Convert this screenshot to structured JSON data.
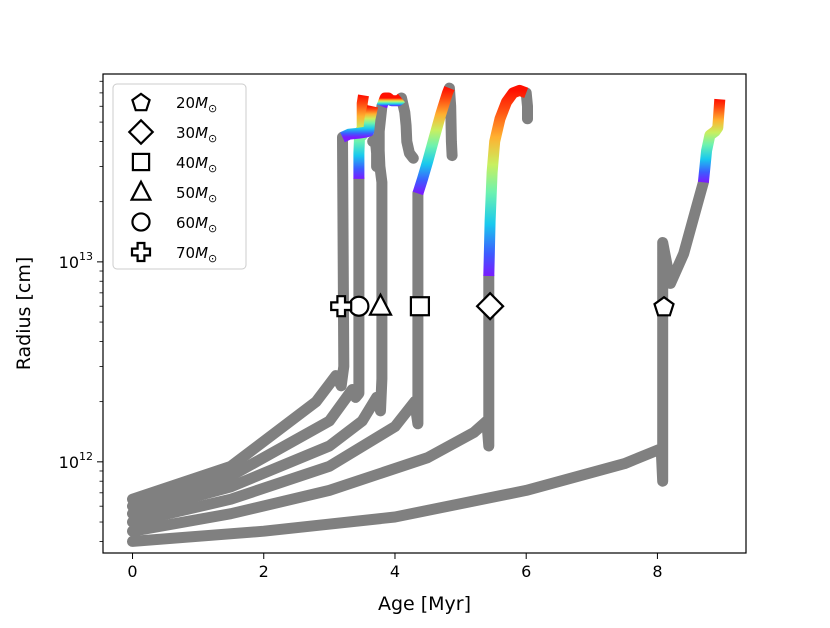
{
  "chart_data": {
    "type": "line",
    "title": "",
    "xlabel": "Age [Myr]",
    "ylabel": "Radius [cm]",
    "xlim": [
      -0.45,
      9.35
    ],
    "ylim": [
      350000000000.0,
      87000000000000.0
    ],
    "yscale": "log",
    "x_ticks": [
      0,
      2,
      4,
      6,
      8
    ],
    "x_tick_labels": [
      "0",
      "2",
      "4",
      "6",
      "8"
    ],
    "y_major_ticks": [
      1000000000000.0,
      10000000000000.0
    ],
    "y_tick_labels": [
      {
        "base": "10",
        "exp": "12"
      },
      {
        "base": "10",
        "exp": "13"
      }
    ],
    "colors": {
      "track": "#808080",
      "axes": "#000000",
      "background": "#ffffff"
    },
    "marker_radius_y": 6000000000000.0,
    "series": [
      {
        "name": "20M☉",
        "marker": "pentagon",
        "marker_age": 8.1,
        "track": [
          [
            0,
            400000000000.0
          ],
          [
            2,
            450000000000.0
          ],
          [
            4,
            530000000000.0
          ],
          [
            6,
            720000000000.0
          ],
          [
            7.5,
            980000000000.0
          ],
          [
            8.02,
            1150000000000.0
          ],
          [
            8.06,
            1100000000000.0
          ],
          [
            8.08,
            800000000000.0
          ],
          [
            8.08,
            12500000000000.0
          ],
          [
            8.2,
            7800000000000.0
          ],
          [
            8.4,
            11000000000000.0
          ],
          [
            8.6,
            19000000000000.0
          ],
          [
            8.7,
            25000000000000.0
          ]
        ],
        "colored": [
          [
            8.7,
            25000000000000.0
          ],
          [
            8.75,
            36000000000000.0
          ],
          [
            8.8,
            43000000000000.0
          ],
          [
            8.88,
            45000000000000.0
          ],
          [
            8.92,
            47000000000000.0
          ],
          [
            8.94,
            58000000000000.0
          ],
          [
            8.95,
            65000000000000.0
          ]
        ]
      },
      {
        "name": "30M☉",
        "marker": "diamond",
        "marker_age": 5.45,
        "track": [
          [
            0,
            450000000000.0
          ],
          [
            1.5,
            550000000000.0
          ],
          [
            3,
            720000000000.0
          ],
          [
            4.5,
            1050000000000.0
          ],
          [
            5.2,
            1400000000000.0
          ],
          [
            5.4,
            1600000000000.0
          ],
          [
            5.43,
            1200000000000.0
          ],
          [
            5.43,
            8500000000000.0
          ]
        ],
        "colored": [
          [
            5.43,
            8500000000000.0
          ],
          [
            5.45,
            16000000000000.0
          ],
          [
            5.48,
            28000000000000.0
          ],
          [
            5.52,
            40000000000000.0
          ],
          [
            5.6,
            52000000000000.0
          ],
          [
            5.7,
            63000000000000.0
          ],
          [
            5.8,
            70000000000000.0
          ],
          [
            5.9,
            72000000000000.0
          ],
          [
            6.0,
            70000000000000.0
          ]
        ],
        "tail": [
          [
            6.0,
            70000000000000.0
          ],
          [
            6.02,
            60000000000000.0
          ],
          [
            6.02,
            52000000000000.0
          ]
        ]
      },
      {
        "name": "40M☉",
        "marker": "square",
        "marker_age": 4.38,
        "track": [
          [
            0,
            500000000000.0
          ],
          [
            1.5,
            650000000000.0
          ],
          [
            3,
            950000000000.0
          ],
          [
            4,
            1500000000000.0
          ],
          [
            4.3,
            2000000000000.0
          ],
          [
            4.35,
            1550000000000.0
          ],
          [
            4.35,
            22000000000000.0
          ]
        ],
        "colored": [
          [
            4.35,
            22000000000000.0
          ],
          [
            4.42,
            26000000000000.0
          ],
          [
            4.5,
            32000000000000.0
          ],
          [
            4.6,
            42000000000000.0
          ],
          [
            4.7,
            55000000000000.0
          ],
          [
            4.8,
            70000000000000.0
          ],
          [
            4.83,
            74000000000000.0
          ]
        ],
        "tail": [
          [
            4.83,
            74000000000000.0
          ],
          [
            4.85,
            60000000000000.0
          ],
          [
            4.86,
            40000000000000.0
          ],
          [
            4.87,
            34000000000000.0
          ]
        ]
      },
      {
        "name": "50M☉",
        "marker": "triangle",
        "marker_age": 3.78,
        "track": [
          [
            0,
            550000000000.0
          ],
          [
            1.5,
            750000000000.0
          ],
          [
            3,
            1200000000000.0
          ],
          [
            3.5,
            1600000000000.0
          ],
          [
            3.72,
            2100000000000.0
          ],
          [
            3.78,
            1800000000000.0
          ],
          [
            3.8,
            2600000000000.0
          ],
          [
            3.8,
            25000000000000.0
          ],
          [
            3.77,
            30000000000000.0
          ],
          [
            3.76,
            36000000000000.0
          ],
          [
            3.76,
            45000000000000.0
          ],
          [
            3.8,
            60000000000000.0
          ]
        ],
        "colored": [
          [
            3.8,
            60000000000000.0
          ],
          [
            3.85,
            66000000000000.0
          ],
          [
            3.9,
            66000000000000.0
          ],
          [
            3.95,
            64000000000000.0
          ],
          [
            4.05,
            64000000000000.0
          ],
          [
            4.1,
            66000000000000.0
          ]
        ],
        "tail": [
          [
            4.1,
            66000000000000.0
          ],
          [
            4.15,
            56000000000000.0
          ],
          [
            4.17,
            48000000000000.0
          ],
          [
            4.18,
            40000000000000.0
          ],
          [
            4.22,
            35000000000000.0
          ],
          [
            4.28,
            33000000000000.0
          ]
        ]
      },
      {
        "name": "60M☉",
        "marker": "circle",
        "marker_age": 3.45,
        "track": [
          [
            0,
            600000000000.0
          ],
          [
            1.5,
            850000000000.0
          ],
          [
            3,
            1600000000000.0
          ],
          [
            3.35,
            2300000000000.0
          ],
          [
            3.4,
            2100000000000.0
          ],
          [
            3.45,
            2200000000000.0
          ],
          [
            3.45,
            26000000000000.0
          ]
        ],
        "colored": [
          [
            3.45,
            26000000000000.0
          ],
          [
            3.45,
            35000000000000.0
          ],
          [
            3.46,
            42000000000000.0
          ],
          [
            3.47,
            45000000000000.0
          ],
          [
            3.5,
            43000000000000.0
          ],
          [
            3.5,
            62000000000000.0
          ],
          [
            3.52,
            68000000000000.0
          ]
        ]
      },
      {
        "name": "70M☉",
        "marker": "plus",
        "marker_age": 3.18,
        "track": [
          [
            0,
            650000000000.0
          ],
          [
            1.5,
            950000000000.0
          ],
          [
            2.8,
            2000000000000.0
          ],
          [
            3.1,
            2700000000000.0
          ],
          [
            3.18,
            2400000000000.0
          ],
          [
            3.22,
            3000000000000.0
          ],
          [
            3.2,
            42000000000000.0
          ]
        ],
        "colored": [
          [
            3.2,
            42000000000000.0
          ],
          [
            3.3,
            43500000000000.0
          ],
          [
            3.45,
            44000000000000.0
          ],
          [
            3.55,
            44500000000000.0
          ],
          [
            3.6,
            45000000000000.0
          ],
          [
            3.62,
            52000000000000.0
          ],
          [
            3.66,
            60000000000000.0
          ]
        ],
        "extra_grey": [
          [
            3.72,
            30000000000000.0
          ],
          [
            3.72,
            35000000000000.0
          ],
          [
            3.7,
            41000000000000.0
          ],
          [
            3.66,
            40000000000000.0
          ]
        ]
      }
    ]
  },
  "legend": {
    "position": "upper-left",
    "entries": [
      {
        "symbol": "pentagon",
        "mass": "20",
        "unit": "M",
        "sun": "⊙"
      },
      {
        "symbol": "diamond",
        "mass": "30",
        "unit": "M",
        "sun": "⊙"
      },
      {
        "symbol": "square",
        "mass": "40",
        "unit": "M",
        "sun": "⊙"
      },
      {
        "symbol": "triangle",
        "mass": "50",
        "unit": "M",
        "sun": "⊙"
      },
      {
        "symbol": "circle",
        "mass": "60",
        "unit": "M",
        "sun": "⊙"
      },
      {
        "symbol": "plus",
        "mass": "70",
        "unit": "M",
        "sun": "⊙"
      }
    ]
  }
}
